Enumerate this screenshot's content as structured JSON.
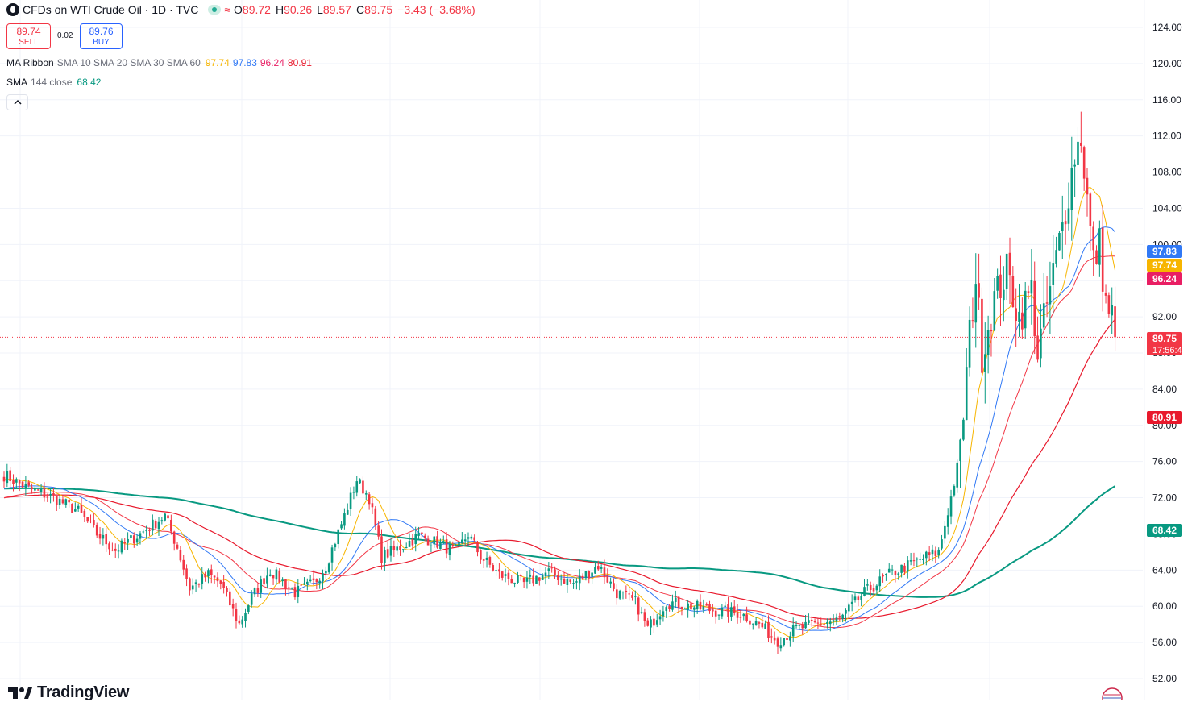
{
  "header": {
    "symbol_title": "CFDs on WTI Crude Oil · 1D · TVC",
    "tilde": "≈",
    "ohlc": [
      {
        "label": "O",
        "value": "89.72"
      },
      {
        "label": "H",
        "value": "90.26"
      },
      {
        "label": "L",
        "value": "89.57"
      },
      {
        "label": "C",
        "value": "89.75"
      },
      {
        "label": "",
        "value": "−3.43 (−3.68%)"
      }
    ]
  },
  "trade": {
    "sell_price": "89.74",
    "sell_label": "SELL",
    "spread": "0.02",
    "buy_price": "89.76",
    "buy_label": "BUY"
  },
  "indicators": {
    "ribbon_name": "MA Ribbon",
    "ribbon_params": "SMA 10 SMA 20 SMA 30 SMA 60",
    "ribbon_values": [
      "97.74",
      "97.83",
      "96.24",
      "80.91"
    ],
    "sma_name": "SMA",
    "sma_params": "144 close",
    "sma_value": "68.42",
    "collapse_icon": "chevron-up"
  },
  "branding": {
    "logo_text": "TradingView"
  },
  "colors": {
    "up": "#089981",
    "down": "#f23645",
    "sma10": "#f7b500",
    "sma20": "#3179f5",
    "sma30": "#f23645",
    "sma60": "#e8192c",
    "sma144": "#089981",
    "grid": "#f0f3fa",
    "axis_text": "#131722"
  },
  "chart_data": {
    "type": "candlestick",
    "title": "CFDs on WTI Crude Oil · 1D · TVC",
    "ylim": [
      52,
      124
    ],
    "y_ticks": [
      "52.00",
      "56.00",
      "60.00",
      "64.00",
      "68.00",
      "72.00",
      "76.00",
      "80.00",
      "84.00",
      "88.00",
      "92.00",
      "96.00",
      "100.00",
      "104.00",
      "108.00",
      "112.00",
      "116.00",
      "120.00",
      "124.00"
    ],
    "grid": true,
    "last_price": 89.75,
    "countdown": "17:56:44",
    "price_labels": [
      {
        "value": "97.83",
        "color": "#3179f5"
      },
      {
        "value": "97.74",
        "color": "#f7b500"
      },
      {
        "value": "96.24",
        "color": "#e91e63"
      },
      {
        "value": "89.75",
        "color": "#f23645"
      },
      {
        "value": "80.91",
        "color": "#e8192c"
      },
      {
        "value": "68.42",
        "color": "#089981"
      }
    ],
    "close_anchors": [
      [
        0,
        74.5
      ],
      [
        8,
        73.0
      ],
      [
        16,
        72.0
      ],
      [
        24,
        70.5
      ],
      [
        30,
        68.0
      ],
      [
        36,
        66.2
      ],
      [
        44,
        68.0
      ],
      [
        52,
        70.0
      ],
      [
        56,
        66.5
      ],
      [
        60,
        62.0
      ],
      [
        66,
        63.5
      ],
      [
        70,
        62.5
      ],
      [
        76,
        58.0
      ],
      [
        80,
        61.0
      ],
      [
        86,
        64.0
      ],
      [
        94,
        61.5
      ],
      [
        100,
        62.5
      ],
      [
        104,
        64.5
      ],
      [
        110,
        70.0
      ],
      [
        114,
        74.0
      ],
      [
        118,
        72.0
      ],
      [
        122,
        65.5
      ],
      [
        128,
        66.5
      ],
      [
        134,
        67.8
      ],
      [
        140,
        67.0
      ],
      [
        146,
        66.0
      ],
      [
        150,
        68.0
      ],
      [
        154,
        65.5
      ],
      [
        160,
        63.5
      ],
      [
        168,
        62.5
      ],
      [
        176,
        63.8
      ],
      [
        184,
        62.5
      ],
      [
        192,
        64.5
      ],
      [
        198,
        61.5
      ],
      [
        204,
        60.5
      ],
      [
        208,
        57.5
      ],
      [
        214,
        60.5
      ],
      [
        222,
        60.0
      ],
      [
        230,
        59.5
      ],
      [
        238,
        59.2
      ],
      [
        244,
        58.0
      ],
      [
        250,
        56.2
      ],
      [
        256,
        57.5
      ],
      [
        262,
        58.0
      ],
      [
        270,
        58.5
      ],
      [
        278,
        61.5
      ],
      [
        286,
        63.5
      ],
      [
        292,
        64.5
      ],
      [
        298,
        65.5
      ],
      [
        302,
        66.0
      ],
      [
        306,
        72.0
      ],
      [
        309,
        77.0
      ],
      [
        312,
        90.0
      ],
      [
        314,
        96.5
      ],
      [
        316,
        88.0
      ],
      [
        320,
        94.0
      ],
      [
        324,
        97.0
      ],
      [
        328,
        92.0
      ],
      [
        332,
        95.0
      ],
      [
        334,
        88.0
      ],
      [
        338,
        95.0
      ],
      [
        342,
        102.0
      ],
      [
        346,
        110.0
      ],
      [
        348,
        112.0
      ],
      [
        350,
        105.0
      ],
      [
        352,
        98.0
      ],
      [
        354,
        100.0
      ],
      [
        356,
        93.5
      ],
      [
        358,
        92.0
      ],
      [
        359,
        89.75
      ]
    ]
  }
}
